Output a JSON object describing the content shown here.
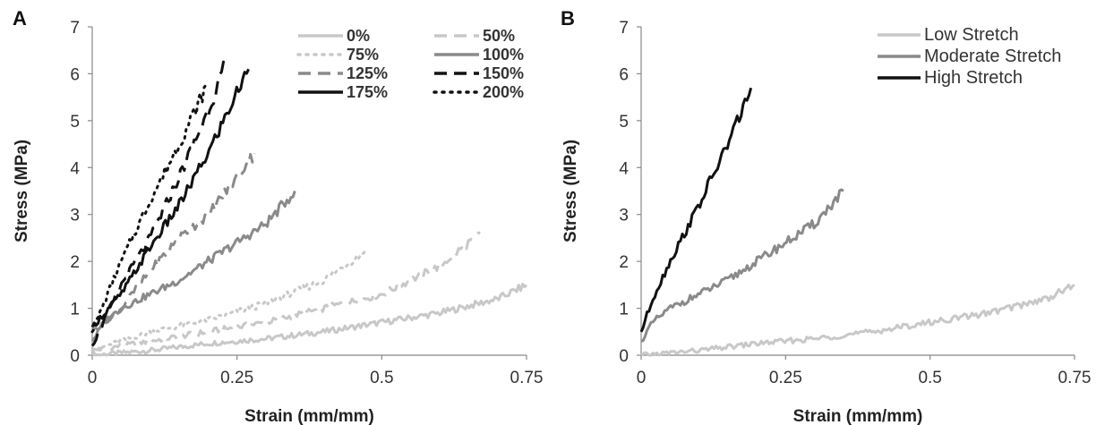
{
  "chart_data": [
    {
      "panel_label": "A",
      "type": "line",
      "xlabel": "Strain (mm/mm)",
      "ylabel": "Stress (MPa)",
      "xlim": [
        0,
        0.75
      ],
      "ylim": [
        0,
        7
      ],
      "xticks": [
        "0",
        "0.25",
        "0.5",
        "0.75"
      ],
      "yticks": [
        "0",
        "1",
        "2",
        "3",
        "4",
        "5",
        "6",
        "7"
      ],
      "legend_position": "top-right",
      "series": [
        {
          "name": "0%",
          "color": "#c8c8c8",
          "dash": "solid",
          "x": [
            0,
            0.1,
            0.2,
            0.3,
            0.4,
            0.5,
            0.6,
            0.7,
            0.75
          ],
          "y": [
            0,
            0.1,
            0.25,
            0.35,
            0.5,
            0.7,
            0.9,
            1.2,
            1.5
          ]
        },
        {
          "name": "50%",
          "color": "#c8c8c8",
          "dash": "dash",
          "x": [
            0,
            0.1,
            0.2,
            0.3,
            0.4,
            0.5,
            0.6,
            0.67
          ],
          "y": [
            0.1,
            0.3,
            0.5,
            0.7,
            1.0,
            1.3,
            1.9,
            2.6
          ]
        },
        {
          "name": "75%",
          "color": "#c8c8c8",
          "dash": "dot",
          "x": [
            0,
            0.05,
            0.1,
            0.2,
            0.3,
            0.4,
            0.47
          ],
          "y": [
            0.1,
            0.3,
            0.5,
            0.75,
            1.1,
            1.6,
            2.2
          ]
        },
        {
          "name": "100%",
          "color": "#8a8a8a",
          "dash": "solid",
          "x": [
            0,
            0.02,
            0.05,
            0.1,
            0.15,
            0.2,
            0.25,
            0.3,
            0.35
          ],
          "y": [
            0.3,
            0.7,
            1.0,
            1.3,
            1.6,
            2.0,
            2.4,
            2.8,
            3.5
          ]
        },
        {
          "name": "125%",
          "color": "#8a8a8a",
          "dash": "dash",
          "x": [
            0,
            0.05,
            0.1,
            0.15,
            0.2,
            0.25,
            0.28
          ],
          "y": [
            0.5,
            1.0,
            1.8,
            2.5,
            3.0,
            3.8,
            4.3
          ]
        },
        {
          "name": "150%",
          "color": "#111111",
          "dash": "dash",
          "x": [
            0,
            0.05,
            0.1,
            0.15,
            0.2,
            0.23
          ],
          "y": [
            0.2,
            1.5,
            2.5,
            3.8,
            5.2,
            6.2
          ]
        },
        {
          "name": "175%",
          "color": "#111111",
          "dash": "solid",
          "x": [
            0,
            0.05,
            0.1,
            0.15,
            0.2,
            0.25,
            0.27
          ],
          "y": [
            0.6,
            1.3,
            2.3,
            3.2,
            4.3,
            5.6,
            6.1
          ]
        },
        {
          "name": "200%",
          "color": "#111111",
          "dash": "dot",
          "x": [
            0,
            0.05,
            0.1,
            0.15,
            0.2
          ],
          "y": [
            0.5,
            2.0,
            3.3,
            4.5,
            5.8
          ]
        }
      ]
    },
    {
      "panel_label": "B",
      "type": "line",
      "xlabel": "Strain (mm/mm)",
      "ylabel": "Stress (MPa)",
      "xlim": [
        0,
        0.75
      ],
      "ylim": [
        0,
        7
      ],
      "xticks": [
        "0",
        "0.25",
        "0.5",
        "0.75"
      ],
      "yticks": [
        "0",
        "1",
        "2",
        "3",
        "4",
        "5",
        "6",
        "7"
      ],
      "legend_position": "top-right",
      "series": [
        {
          "name": "Low Stretch",
          "color": "#c8c8c8",
          "dash": "solid",
          "x": [
            0,
            0.1,
            0.2,
            0.3,
            0.4,
            0.5,
            0.6,
            0.7,
            0.75
          ],
          "y": [
            0,
            0.1,
            0.25,
            0.35,
            0.5,
            0.7,
            0.9,
            1.2,
            1.5
          ]
        },
        {
          "name": "Moderate Stretch",
          "color": "#8a8a8a",
          "dash": "solid",
          "x": [
            0,
            0.02,
            0.05,
            0.1,
            0.15,
            0.2,
            0.25,
            0.3,
            0.35
          ],
          "y": [
            0.3,
            0.7,
            1.0,
            1.3,
            1.6,
            2.0,
            2.4,
            2.8,
            3.5
          ]
        },
        {
          "name": "High Stretch",
          "color": "#111111",
          "dash": "solid",
          "x": [
            0,
            0.02,
            0.05,
            0.1,
            0.15,
            0.19
          ],
          "y": [
            0.5,
            1.2,
            2.0,
            3.2,
            4.5,
            5.7
          ]
        }
      ]
    }
  ]
}
